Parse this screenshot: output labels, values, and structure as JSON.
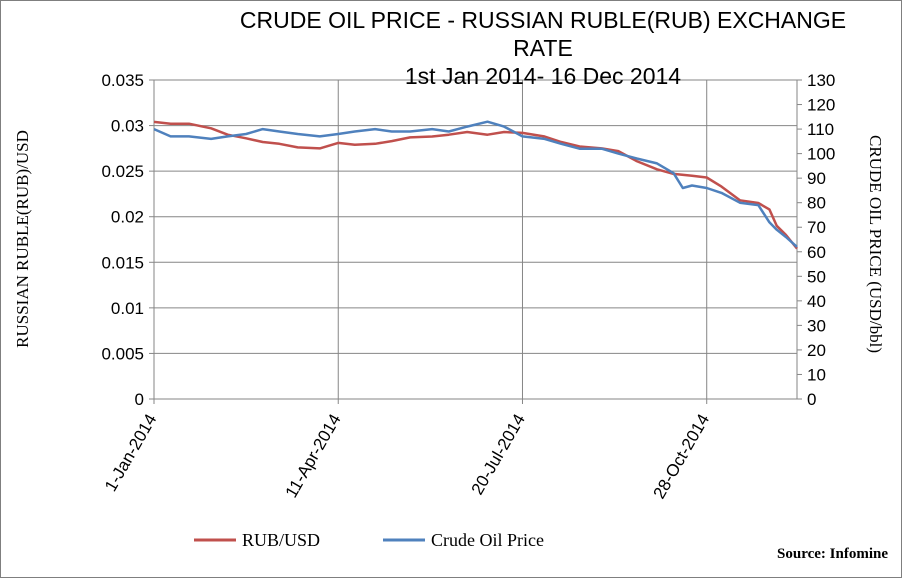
{
  "chart_data": {
    "type": "line",
    "title_line1": "CRUDE OIL PRICE -  RUSSIAN RUBLE(RUB) EXCHANGE",
    "title_line2": "RATE",
    "subtitle": "1st Jan 2014- 16 Dec 2014",
    "ylabel_left": "RUSSIAN RUBLE(RUB)/USD",
    "ylabel_right": "CRUDE OIL PRICE   (USD/bbl)",
    "ylim_left": [
      0,
      0.035
    ],
    "ylim_right": [
      0,
      130
    ],
    "yticks_left": [
      "0",
      "0.005",
      "0.01",
      "0.015",
      "0.02",
      "0.025",
      "0.03",
      "0.035"
    ],
    "yticks_right": [
      "0",
      "10",
      "20",
      "30",
      "40",
      "50",
      "60",
      "70",
      "80",
      "90",
      "100",
      "110",
      "120",
      "130"
    ],
    "x_tick_labels": [
      "1-Jan-2014",
      "11-Apr-2014",
      "20-Jul-2014",
      "28-Oct-2014"
    ],
    "x_tick_dates": [
      "2014-01-01",
      "2014-04-11",
      "2014-07-20",
      "2014-10-28"
    ],
    "xlim": [
      "2014-01-01",
      "2014-12-16"
    ],
    "grid": true,
    "legend_position": "bottom",
    "series": [
      {
        "name": "RUB/USD",
        "axis": "left",
        "color": "#c0504d",
        "x": [
          "2014-01-01",
          "2014-01-10",
          "2014-01-20",
          "2014-02-01",
          "2014-02-10",
          "2014-02-20",
          "2014-03-01",
          "2014-03-10",
          "2014-03-20",
          "2014-04-01",
          "2014-04-11",
          "2014-04-20",
          "2014-05-01",
          "2014-05-10",
          "2014-05-20",
          "2014-06-01",
          "2014-06-10",
          "2014-06-20",
          "2014-07-01",
          "2014-07-10",
          "2014-07-20",
          "2014-08-01",
          "2014-08-10",
          "2014-08-20",
          "2014-09-01",
          "2014-09-10",
          "2014-09-20",
          "2014-10-01",
          "2014-10-10",
          "2014-10-20",
          "2014-10-28",
          "2014-11-05",
          "2014-11-15",
          "2014-11-25",
          "2014-12-01",
          "2014-12-05",
          "2014-12-10",
          "2014-12-16"
        ],
        "values": [
          0.0304,
          0.0302,
          0.0302,
          0.0297,
          0.029,
          0.0286,
          0.0282,
          0.028,
          0.0276,
          0.0275,
          0.0281,
          0.0279,
          0.028,
          0.0283,
          0.0287,
          0.0288,
          0.029,
          0.0293,
          0.029,
          0.0293,
          0.0292,
          0.0288,
          0.0282,
          0.0277,
          0.0275,
          0.0272,
          0.0261,
          0.0252,
          0.0247,
          0.0245,
          0.0243,
          0.0233,
          0.0218,
          0.0215,
          0.0208,
          0.019,
          0.018,
          0.0165
        ]
      },
      {
        "name": "Crude Oil Price",
        "axis": "right",
        "color": "#4f81bd",
        "x": [
          "2014-01-01",
          "2014-01-10",
          "2014-01-20",
          "2014-02-01",
          "2014-02-10",
          "2014-02-20",
          "2014-03-01",
          "2014-03-10",
          "2014-03-20",
          "2014-04-01",
          "2014-04-11",
          "2014-04-20",
          "2014-05-01",
          "2014-05-10",
          "2014-05-20",
          "2014-06-01",
          "2014-06-10",
          "2014-06-20",
          "2014-07-01",
          "2014-07-10",
          "2014-07-20",
          "2014-08-01",
          "2014-08-10",
          "2014-08-20",
          "2014-09-01",
          "2014-09-10",
          "2014-09-20",
          "2014-10-01",
          "2014-10-10",
          "2014-10-15",
          "2014-10-20",
          "2014-10-28",
          "2014-11-05",
          "2014-11-15",
          "2014-11-25",
          "2014-12-01",
          "2014-12-05",
          "2014-12-10",
          "2014-12-16"
        ],
        "values": [
          110,
          107,
          107,
          106,
          107,
          108,
          110,
          109,
          108,
          107,
          108,
          109,
          110,
          109,
          109,
          110,
          109,
          111,
          113,
          111,
          107,
          106,
          104,
          102,
          102,
          100,
          98,
          96,
          92,
          86,
          87,
          86,
          84,
          80,
          79,
          72,
          69,
          66,
          62
        ]
      }
    ],
    "source": "Source: Infomine"
  }
}
